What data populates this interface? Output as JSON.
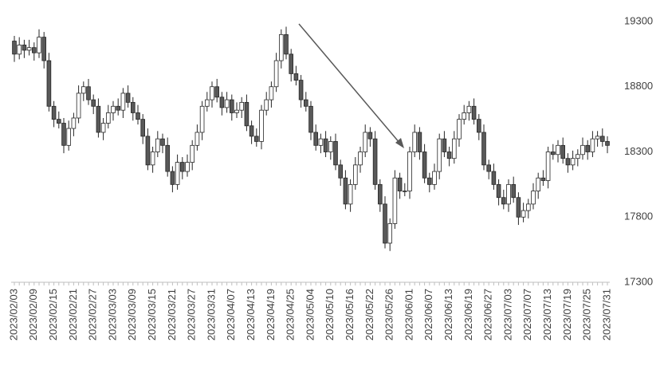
{
  "chart_data": {
    "type": "candlestick",
    "categories": [
      "2023/02/03",
      null,
      null,
      null,
      "2023/02/09",
      null,
      null,
      null,
      "2023/02/15",
      null,
      null,
      null,
      "2023/02/21",
      null,
      null,
      null,
      "2023/02/27",
      null,
      null,
      null,
      "2023/03/03",
      null,
      null,
      null,
      "2023/03/09",
      null,
      null,
      null,
      "2023/03/15",
      null,
      null,
      null,
      "2023/03/21",
      null,
      null,
      null,
      "2023/03/27",
      null,
      null,
      null,
      "2023/03/31",
      null,
      null,
      null,
      "2023/04/07",
      null,
      null,
      null,
      "2023/04/13",
      null,
      null,
      null,
      "2023/04/19",
      null,
      null,
      null,
      "2023/04/25",
      null,
      null,
      null,
      "2023/05/04",
      null,
      null,
      null,
      "2023/05/10",
      null,
      null,
      null,
      "2023/05/16",
      null,
      null,
      null,
      "2023/05/22",
      null,
      null,
      null,
      "2023/05/26",
      null,
      null,
      null,
      "2023/06/01",
      null,
      null,
      null,
      "2023/06/07",
      null,
      null,
      null,
      "2023/06/13",
      null,
      null,
      null,
      "2023/06/19",
      null,
      null,
      null,
      "2023/06/27",
      null,
      null,
      null,
      "2023/07/03",
      null,
      null,
      null,
      "2023/07/07",
      null,
      null,
      null,
      "2023/07/13",
      null,
      null,
      null,
      "2023/07/19",
      null,
      null,
      null,
      "2023/07/25",
      null,
      null,
      null,
      "2023/07/31"
    ],
    "open": [
      19150,
      19050,
      19120,
      19080,
      19100,
      19060,
      19180,
      19000,
      18650,
      18550,
      18520,
      18350,
      18480,
      18560,
      18750,
      18800,
      18700,
      18650,
      18450,
      18520,
      18600,
      18650,
      18620,
      18750,
      18680,
      18600,
      18550,
      18420,
      18200,
      18300,
      18400,
      18350,
      18150,
      18050,
      18220,
      18150,
      18220,
      18350,
      18450,
      18650,
      18700,
      18800,
      18720,
      18640,
      18700,
      18600,
      18620,
      18680,
      18500,
      18420,
      18380,
      18620,
      18700,
      18800,
      19000,
      19200,
      19050,
      18900,
      18850,
      18700,
      18650,
      18450,
      18350,
      18400,
      18300,
      18380,
      18200,
      18100,
      17900,
      18050,
      18200,
      18300,
      18450,
      18400,
      18050,
      17900,
      17600,
      17750,
      18100,
      18000,
      18000,
      18300,
      18450,
      18300,
      18100,
      18050,
      18150,
      18400,
      18300,
      18250,
      18400,
      18550,
      18600,
      18650,
      18550,
      18450,
      18200,
      18150,
      18050,
      17950,
      17900,
      18050,
      17950,
      17800,
      17850,
      17900,
      18000,
      18100,
      18080,
      18300,
      18280,
      18350,
      18250,
      18200,
      18250,
      18280,
      18350,
      18300,
      18400,
      18420,
      18380
    ],
    "high": [
      19190,
      19180,
      19160,
      19160,
      19140,
      19240,
      19220,
      19060,
      18690,
      18610,
      18560,
      18540,
      18600,
      18810,
      18840,
      18860,
      18740,
      18710,
      18560,
      18660,
      18690,
      18710,
      18790,
      18810,
      18720,
      18660,
      18590,
      18480,
      18340,
      18460,
      18440,
      18410,
      18190,
      18280,
      18260,
      18280,
      18390,
      18510,
      18690,
      18760,
      18840,
      18860,
      18760,
      18760,
      18740,
      18680,
      18720,
      18740,
      18540,
      18480,
      18660,
      18760,
      18840,
      19060,
      19240,
      19260,
      19090,
      18960,
      18890,
      18760,
      18690,
      18510,
      18440,
      18460,
      18420,
      18440,
      18240,
      18160,
      18090,
      18260,
      18340,
      18510,
      18490,
      18460,
      18090,
      17960,
      17790,
      18160,
      18140,
      18060,
      18340,
      18510,
      18490,
      18360,
      18140,
      18210,
      18440,
      18460,
      18340,
      18460,
      18590,
      18660,
      18690,
      18710,
      18590,
      18510,
      18240,
      18210,
      18090,
      18010,
      18090,
      18110,
      17990,
      17910,
      17940,
      18060,
      18140,
      18160,
      18340,
      18360,
      18390,
      18410,
      18290,
      18310,
      18320,
      18410,
      18390,
      18460,
      18460,
      18480,
      18420
    ],
    "low": [
      18990,
      19010,
      19020,
      19040,
      19000,
      19020,
      18940,
      18610,
      18490,
      18480,
      18290,
      18310,
      18420,
      18520,
      18690,
      18660,
      18590,
      18410,
      18390,
      18480,
      18540,
      18580,
      18560,
      18640,
      18540,
      18510,
      18360,
      18160,
      18140,
      18260,
      18290,
      18110,
      17990,
      18010,
      18090,
      18110,
      18160,
      18310,
      18390,
      18610,
      18640,
      18680,
      18580,
      18600,
      18540,
      18560,
      18560,
      18460,
      18360,
      18340,
      18320,
      18580,
      18640,
      18760,
      18940,
      19010,
      18840,
      18810,
      18640,
      18610,
      18390,
      18310,
      18290,
      18260,
      18240,
      18160,
      18040,
      17860,
      17840,
      18010,
      18140,
      18260,
      18340,
      18010,
      17840,
      17560,
      17540,
      17710,
      17940,
      17960,
      17940,
      18260,
      18240,
      18060,
      17990,
      18010,
      18090,
      18260,
      18190,
      18210,
      18340,
      18510,
      18540,
      18510,
      18390,
      18160,
      18090,
      18010,
      17890,
      17860,
      17840,
      17910,
      17740,
      17760,
      17790,
      17860,
      17940,
      18040,
      18020,
      18240,
      18220,
      18210,
      18140,
      18160,
      18190,
      18240,
      18240,
      18260,
      18340,
      18340,
      18290
    ],
    "close": [
      19050,
      19120,
      19080,
      19100,
      19060,
      19180,
      19000,
      18650,
      18550,
      18520,
      18350,
      18480,
      18560,
      18750,
      18800,
      18700,
      18650,
      18450,
      18520,
      18600,
      18650,
      18620,
      18750,
      18680,
      18600,
      18550,
      18420,
      18200,
      18300,
      18400,
      18350,
      18150,
      18050,
      18220,
      18150,
      18220,
      18350,
      18450,
      18650,
      18700,
      18800,
      18720,
      18640,
      18700,
      18600,
      18620,
      18680,
      18500,
      18420,
      18380,
      18620,
      18700,
      18800,
      19000,
      19200,
      19050,
      18900,
      18850,
      18700,
      18650,
      18450,
      18350,
      18400,
      18300,
      18380,
      18200,
      18100,
      17900,
      18050,
      18200,
      18300,
      18450,
      18400,
      18050,
      17900,
      17600,
      17750,
      18100,
      18000,
      18000,
      18300,
      18450,
      18300,
      18100,
      18050,
      18150,
      18400,
      18300,
      18250,
      18400,
      18550,
      18600,
      18650,
      18550,
      18450,
      18200,
      18150,
      18050,
      17950,
      17900,
      18050,
      17950,
      17800,
      17850,
      17900,
      18000,
      18100,
      18080,
      18300,
      18280,
      18350,
      18250,
      18200,
      18250,
      18280,
      18350,
      18300,
      18400,
      18420,
      18380,
      18350
    ],
    "up_color": "#ffffff",
    "down_color": "#595959",
    "edge_color": "#262626",
    "ylim": [
      17300,
      19300
    ],
    "yticks": [
      17300,
      17800,
      18300,
      18800,
      19300
    ],
    "grid": false
  }
}
